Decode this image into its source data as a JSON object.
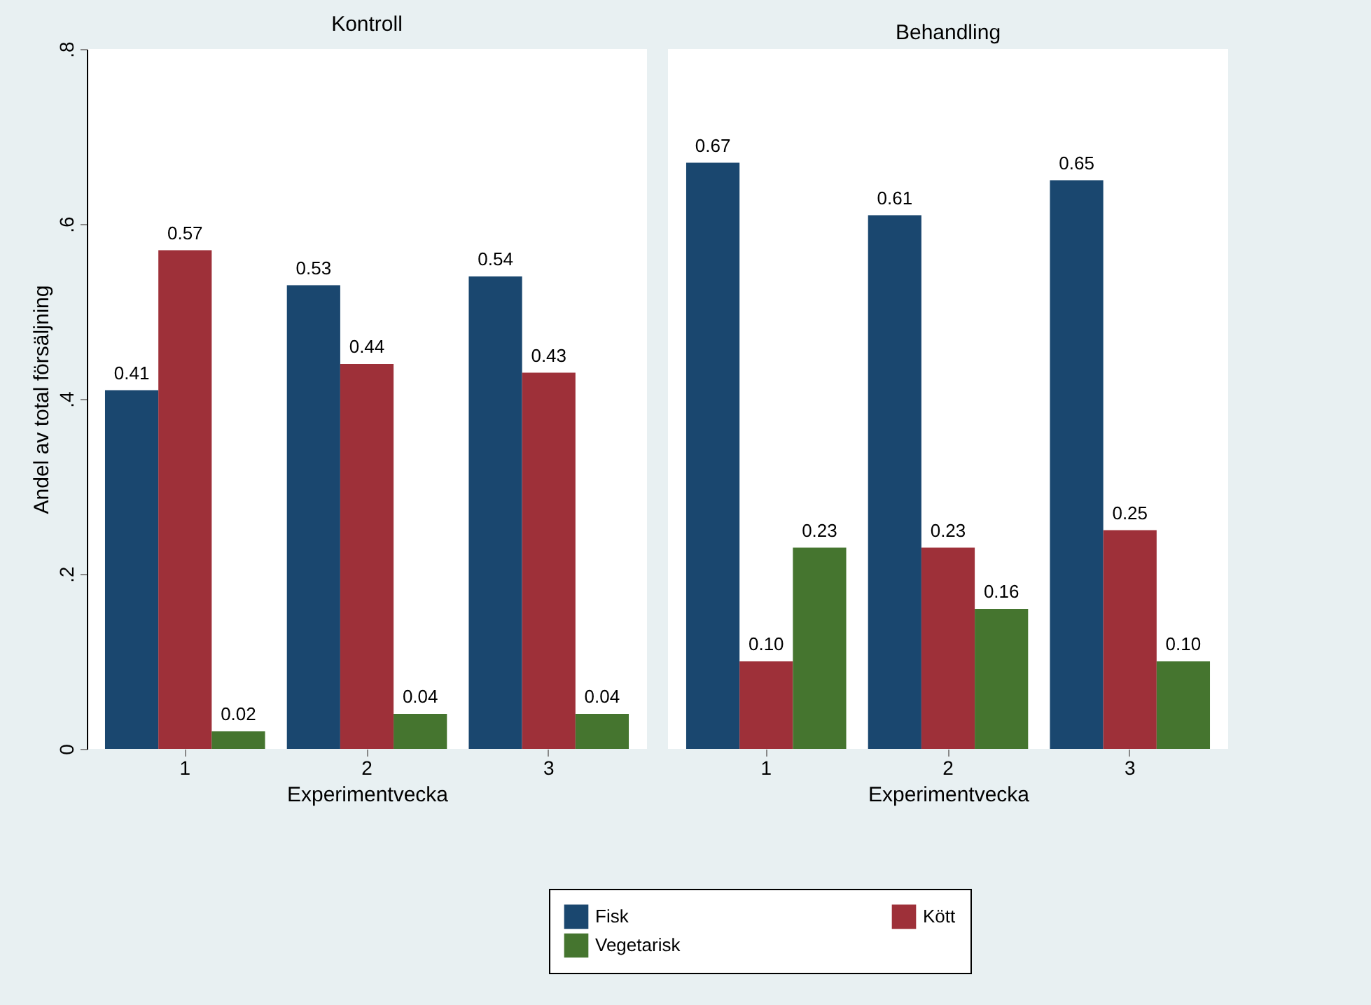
{
  "chart_data": [
    {
      "type": "bar",
      "title": "Kontroll",
      "xlabel": "Experimentvecka",
      "ylabel": "Andel av total försäljning",
      "categories": [
        "1",
        "2",
        "3"
      ],
      "ylim": [
        0,
        0.8
      ],
      "yticks": [
        0,
        {
          "value": 0.2,
          "label": ".2"
        },
        {
          "value": 0.4,
          "label": ".4"
        },
        {
          "value": 0.6,
          "label": ".6"
        },
        {
          "value": 0.8,
          "label": ".8"
        }
      ],
      "legend": "bottom",
      "series": [
        {
          "name": "Fisk",
          "color": "#1a476f",
          "values": [
            0.41,
            0.53,
            0.54
          ],
          "value_labels": [
            "0.41",
            "0.53",
            "0.54"
          ]
        },
        {
          "name": "Kött",
          "color": "#9e3039",
          "values": [
            0.57,
            0.44,
            0.43
          ],
          "value_labels": [
            "0.57",
            "0.44",
            "0.43"
          ]
        },
        {
          "name": "Vegetarisk",
          "color": "#45752f",
          "values": [
            0.02,
            0.04,
            0.04
          ],
          "value_labels": [
            "0.02",
            "0.04",
            "0.04"
          ]
        }
      ]
    },
    {
      "type": "bar",
      "title": "Behandling",
      "xlabel": "Experimentvecka",
      "categories": [
        "1",
        "2",
        "3"
      ],
      "ylim": [
        0,
        0.8
      ],
      "tick_labels": "x",
      "series": [
        {
          "name": "Fisk",
          "color": "#1a476f",
          "values": [
            0.67,
            0.61,
            0.65
          ],
          "value_labels": [
            "0.67",
            "0.61",
            "0.65"
          ]
        },
        {
          "name": "Kött",
          "color": "#9e3039",
          "values": [
            0.1,
            0.23,
            0.25
          ],
          "value_labels": [
            "0.10",
            "0.23",
            "0.25"
          ]
        },
        {
          "name": "Vegetarisk",
          "color": "#45752f",
          "values": [
            0.23,
            0.16,
            0.1
          ],
          "value_labels": [
            "0.23",
            "0.16",
            "0.10"
          ]
        }
      ]
    }
  ]
}
